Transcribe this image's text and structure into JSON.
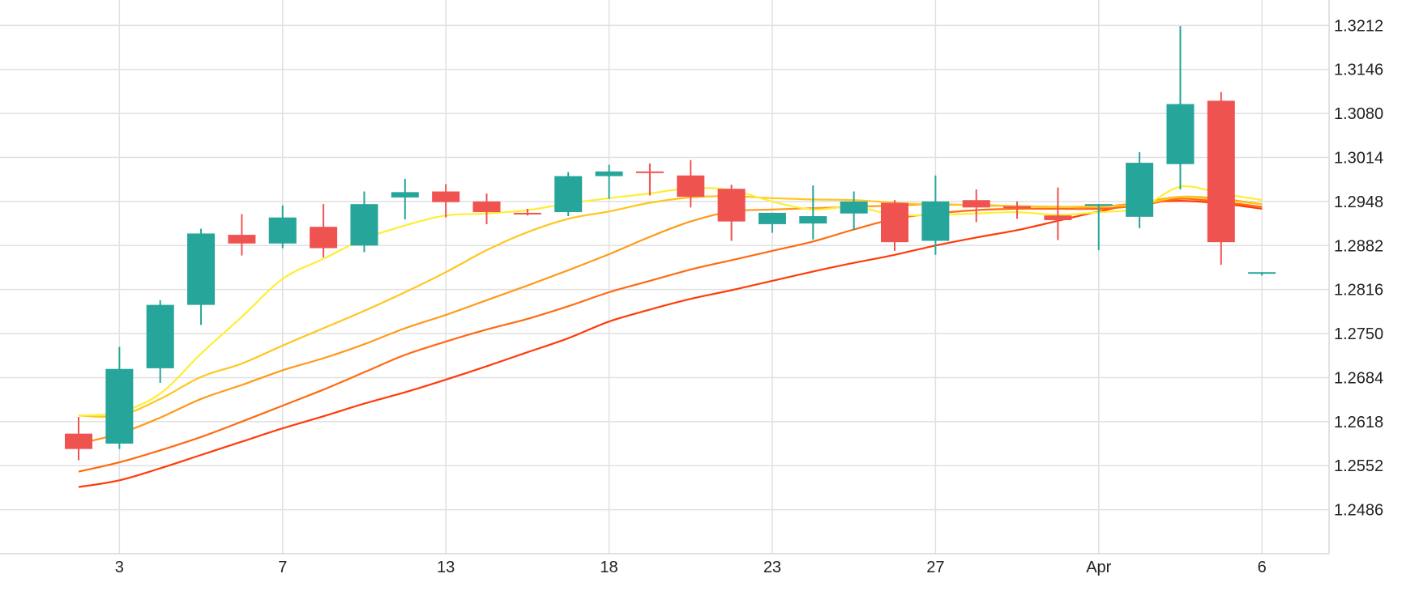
{
  "chart_data": {
    "type": "candlestick",
    "title": "",
    "xlabel": "",
    "ylabel": "",
    "ylim": [
      1.242,
      1.325
    ],
    "grid": true,
    "colors": {
      "up": "#26a69a",
      "down": "#ef5350",
      "ma_lines": [
        "#ffee33",
        "#ffc61f",
        "#ff9a1a",
        "#ff6a10",
        "#ff3b0a"
      ]
    },
    "y_ticks": [
      "1.2486",
      "1.2552",
      "1.2618",
      "1.2684",
      "1.2750",
      "1.2816",
      "1.2882",
      "1.2948",
      "1.3014",
      "1.3080",
      "1.3146",
      "1.3212"
    ],
    "x_ticks": [
      {
        "label": "3",
        "index": 1
      },
      {
        "label": "7",
        "index": 5
      },
      {
        "label": "13",
        "index": 9
      },
      {
        "label": "18",
        "index": 13
      },
      {
        "label": "23",
        "index": 17
      },
      {
        "label": "27",
        "index": 21
      },
      {
        "label": "Apr",
        "index": 25
      },
      {
        "label": "6",
        "index": 29
      }
    ],
    "candles": [
      {
        "o": 1.26,
        "h": 1.2625,
        "l": 1.256,
        "c": 1.2577
      },
      {
        "o": 1.2585,
        "h": 1.273,
        "l": 1.2577,
        "c": 1.2697
      },
      {
        "o": 1.2698,
        "h": 1.28,
        "l": 1.2676,
        "c": 1.2793
      },
      {
        "o": 1.2793,
        "h": 1.2907,
        "l": 1.2763,
        "c": 1.29
      },
      {
        "o": 1.2898,
        "h": 1.2929,
        "l": 1.2867,
        "c": 1.2885
      },
      {
        "o": 1.2885,
        "h": 1.2942,
        "l": 1.2878,
        "c": 1.2924
      },
      {
        "o": 1.291,
        "h": 1.2944,
        "l": 1.2864,
        "c": 1.2878
      },
      {
        "o": 1.2882,
        "h": 1.2963,
        "l": 1.2872,
        "c": 1.2944
      },
      {
        "o": 1.2954,
        "h": 1.2982,
        "l": 1.2921,
        "c": 1.2962
      },
      {
        "o": 1.2963,
        "h": 1.2974,
        "l": 1.2924,
        "c": 1.2947
      },
      {
        "o": 1.2948,
        "h": 1.296,
        "l": 1.2914,
        "c": 1.2932
      },
      {
        "o": 1.2931,
        "h": 1.2937,
        "l": 1.2927,
        "c": 1.2929
      },
      {
        "o": 1.2932,
        "h": 1.2992,
        "l": 1.2926,
        "c": 1.2986
      },
      {
        "o": 1.2986,
        "h": 1.3003,
        "l": 1.2952,
        "c": 1.2993
      },
      {
        "o": 1.2993,
        "h": 1.3005,
        "l": 1.2957,
        "c": 1.2992
      },
      {
        "o": 1.2987,
        "h": 1.301,
        "l": 1.2939,
        "c": 1.2955
      },
      {
        "o": 1.2967,
        "h": 1.2973,
        "l": 1.2889,
        "c": 1.2918
      },
      {
        "o": 1.2914,
        "h": 1.2931,
        "l": 1.2901,
        "c": 1.2931
      },
      {
        "o": 1.2915,
        "h": 1.2972,
        "l": 1.2891,
        "c": 1.2926
      },
      {
        "o": 1.293,
        "h": 1.2963,
        "l": 1.2905,
        "c": 1.2948
      },
      {
        "o": 1.2946,
        "h": 1.295,
        "l": 1.2874,
        "c": 1.2887
      },
      {
        "o": 1.2889,
        "h": 1.2987,
        "l": 1.2868,
        "c": 1.2948
      },
      {
        "o": 1.295,
        "h": 1.2966,
        "l": 1.2917,
        "c": 1.2939
      },
      {
        "o": 1.2941,
        "h": 1.2948,
        "l": 1.2922,
        "c": 1.2938
      },
      {
        "o": 1.2927,
        "h": 1.2969,
        "l": 1.289,
        "c": 1.292
      },
      {
        "o": 1.2942,
        "h": 1.2944,
        "l": 1.2875,
        "c": 1.2944
      },
      {
        "o": 1.2925,
        "h": 1.3022,
        "l": 1.2908,
        "c": 1.3006
      },
      {
        "o": 1.3004,
        "h": 1.3211,
        "l": 1.2966,
        "c": 1.3094
      },
      {
        "o": 1.3099,
        "h": 1.3112,
        "l": 1.2853,
        "c": 1.2887
      },
      {
        "o": 1.2842,
        "h": 1.2842,
        "l": 1.2837,
        "c": 1.2842
      }
    ],
    "moving_averages": [
      {
        "color": "#ffee33",
        "values": [
          1.2627,
          1.2632,
          1.266,
          1.272,
          1.2775,
          1.2832,
          1.2862,
          1.2892,
          1.2912,
          1.2927,
          1.293,
          1.2935,
          1.2945,
          1.2953,
          1.296,
          1.2968,
          1.2965,
          1.2948,
          1.2936,
          1.294,
          1.2928,
          1.2928,
          1.293,
          1.2932,
          1.2928,
          1.2932,
          1.2938,
          1.297,
          1.296,
          1.295
        ]
      },
      {
        "color": "#ffc61f",
        "values": [
          1.2627,
          1.2627,
          1.2652,
          1.2685,
          1.2705,
          1.2732,
          1.2758,
          1.2784,
          1.2812,
          1.2842,
          1.2875,
          1.2902,
          1.2922,
          1.2933,
          1.2946,
          1.2954,
          1.2956,
          1.2953,
          1.2951,
          1.295,
          1.2946,
          1.2943,
          1.2943,
          1.2941,
          1.294,
          1.2941,
          1.2943,
          1.2955,
          1.295,
          1.2944
        ]
      },
      {
        "color": "#ff9a1a",
        "values": [
          1.2585,
          1.26,
          1.2624,
          1.2652,
          1.2673,
          1.2695,
          1.2713,
          1.2734,
          1.2758,
          1.2778,
          1.28,
          1.2822,
          1.2845,
          1.2869,
          1.2895,
          1.2918,
          1.2933,
          1.2936,
          1.2938,
          1.294,
          1.2942,
          1.2944,
          1.2942,
          1.2941,
          1.294,
          1.294,
          1.2946,
          1.2955,
          1.2952,
          1.2944
        ]
      },
      {
        "color": "#ff6a10",
        "values": [
          1.2543,
          1.2557,
          1.2575,
          1.2595,
          1.2618,
          1.2642,
          1.2666,
          1.2692,
          1.2718,
          1.2738,
          1.2756,
          1.2772,
          1.2791,
          1.2812,
          1.2829,
          1.2846,
          1.286,
          1.2874,
          1.2888,
          1.2906,
          1.2922,
          1.293,
          1.2935,
          1.2937,
          1.2937,
          1.2937,
          1.2942,
          1.2952,
          1.2947,
          1.294
        ]
      },
      {
        "color": "#ff3b0a",
        "values": [
          1.252,
          1.253,
          1.2548,
          1.2568,
          1.2588,
          1.2608,
          1.2626,
          1.2645,
          1.2662,
          1.2681,
          1.2701,
          1.2722,
          1.2743,
          1.2768,
          1.2786,
          1.2802,
          1.2815,
          1.2829,
          1.2843,
          1.2856,
          1.2868,
          1.2882,
          1.2894,
          1.2905,
          1.2919,
          1.2933,
          1.2945,
          1.2949,
          1.2945,
          1.2937
        ]
      }
    ]
  }
}
